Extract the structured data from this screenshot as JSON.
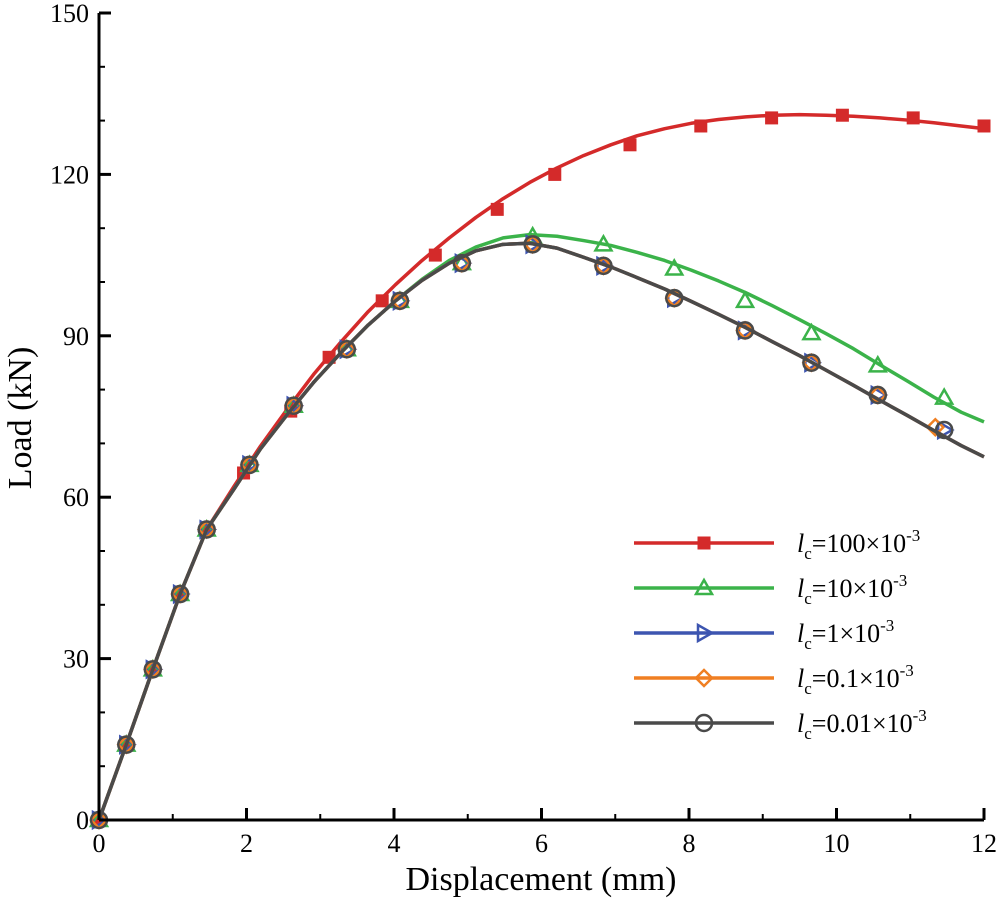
{
  "chart_data": {
    "type": "line",
    "xlabel": "Displacement (mm)",
    "ylabel": "Load (kN)",
    "xlim": [
      0,
      12
    ],
    "ylim": [
      0,
      150
    ],
    "xticks": [
      0,
      2,
      4,
      6,
      8,
      10,
      12
    ],
    "yticks": [
      0,
      30,
      60,
      90,
      120,
      150
    ],
    "x_tick_labels": [
      "0",
      "2",
      "4",
      "6",
      "8",
      "10",
      "12"
    ],
    "y_tick_labels": [
      "0",
      "30",
      "60",
      "90",
      "120",
      "150"
    ],
    "grid": false,
    "legend_position": "bottom-right",
    "series": [
      {
        "name": "lc=100×10-3",
        "label_prefix": "l",
        "label_sub": "c",
        "label_main": "=100×10",
        "label_sup": "-3",
        "color": "#d42a2a",
        "marker": "filled-square",
        "x": [
          0,
          0.37,
          0.73,
          1.1,
          1.46,
          1.83,
          2.19,
          2.56,
          2.92,
          3.29,
          3.65,
          4.02,
          4.38,
          4.75,
          5.11,
          5.48,
          5.84,
          6.21,
          6.57,
          6.94,
          7.3,
          7.67,
          8.03,
          8.4,
          8.77,
          9.13,
          9.5,
          9.86,
          10.23,
          10.59,
          10.96,
          11.32,
          11.69,
          12.0
        ],
        "y": [
          0,
          14,
          28,
          42,
          54,
          62,
          69.5,
          76.5,
          83,
          89,
          94.5,
          99.5,
          104,
          108.2,
          112,
          115.5,
          118.5,
          121.2,
          123.5,
          125.5,
          127.2,
          128.5,
          129.5,
          130.2,
          130.7,
          131.0,
          131.1,
          131.0,
          130.8,
          130.5,
          130.1,
          129.6,
          129.0,
          128.5
        ],
        "markers_x": [
          0,
          0.37,
          0.73,
          1.1,
          1.46,
          1.96,
          2.6,
          3.12,
          3.84,
          4.56,
          5.4,
          6.18,
          7.2,
          8.16,
          9.12,
          10.08,
          11.04,
          12.0
        ],
        "markers_y": [
          0,
          14,
          28,
          42,
          54,
          64.5,
          76,
          86,
          96.5,
          105,
          113.5,
          120,
          125.5,
          129,
          130.5,
          131,
          130.5,
          129
        ]
      },
      {
        "name": "lc=10×10-3",
        "label_prefix": "l",
        "label_sub": "c",
        "label_main": "=10×10",
        "label_sup": "-3",
        "color": "#3bb34a",
        "marker": "open-triangle",
        "x": [
          0,
          0.37,
          0.73,
          1.1,
          1.46,
          1.83,
          2.19,
          2.56,
          2.92,
          3.29,
          3.65,
          4.02,
          4.38,
          4.75,
          5.11,
          5.48,
          5.84,
          6.21,
          6.57,
          6.94,
          7.3,
          7.67,
          8.03,
          8.4,
          8.77,
          9.13,
          9.5,
          9.86,
          10.23,
          10.59,
          10.96,
          11.32,
          11.69,
          12.0
        ],
        "y": [
          0,
          14,
          28,
          42,
          54,
          61.5,
          69,
          75.5,
          81.5,
          87,
          92,
          96.5,
          100.5,
          104,
          106.5,
          108.2,
          108.8,
          108.5,
          107.7,
          106.8,
          105.5,
          104,
          102.2,
          100.2,
          98,
          95.6,
          93,
          90.4,
          87.6,
          84.6,
          81.6,
          78.6,
          75.8,
          74
        ],
        "markers_x": [
          0,
          0.37,
          0.73,
          1.1,
          1.46,
          2.04,
          2.64,
          3.36,
          4.08,
          4.92,
          5.88,
          6.84,
          7.8,
          8.76,
          9.66,
          10.56,
          11.46
        ],
        "markers_y": [
          0,
          14,
          28,
          42,
          54,
          66,
          77,
          87.5,
          96.5,
          103.5,
          108.5,
          107,
          102.5,
          96.5,
          90.5,
          84.5,
          78.5
        ]
      },
      {
        "name": "lc=1×10-3",
        "label_prefix": "l",
        "label_sub": "c",
        "label_main": "=1×10",
        "label_sup": "-3",
        "color": "#3d55b0",
        "marker": "open-triangle-right",
        "x": [
          0,
          0.37,
          0.73,
          1.1,
          1.46,
          1.83,
          2.19,
          2.56,
          2.92,
          3.29,
          3.65,
          4.02,
          4.38,
          4.75,
          5.11,
          5.48,
          5.84,
          6.21,
          6.57,
          6.94,
          7.3,
          7.67,
          8.03,
          8.4,
          8.77,
          9.13,
          9.5,
          9.86,
          10.23,
          10.59,
          10.96,
          11.32,
          11.69,
          12.0
        ],
        "y": [
          0,
          14,
          28,
          42,
          54,
          61.5,
          69,
          75.5,
          81.5,
          87,
          92,
          96.5,
          100.3,
          103.5,
          105.8,
          107,
          107.2,
          106.3,
          104.6,
          102.8,
          100.8,
          98.7,
          96.4,
          94,
          91.5,
          88.9,
          86.3,
          83.6,
          80.8,
          78,
          75.2,
          72.4,
          69.6,
          67.5
        ],
        "markers_x": [
          0,
          0.37,
          0.73,
          1.1,
          1.46,
          2.04,
          2.64,
          3.36,
          4.08,
          4.92,
          5.88,
          6.84,
          7.8,
          8.76,
          9.66,
          10.56,
          11.46
        ],
        "markers_y": [
          0,
          14,
          28,
          42,
          54,
          66,
          77,
          87.5,
          96.5,
          103.5,
          107,
          103,
          97,
          91,
          85,
          79,
          72.5
        ]
      },
      {
        "name": "lc=0.1×10-3",
        "label_prefix": "l",
        "label_sub": "c",
        "label_main": "=0.1×10",
        "label_sup": "-3",
        "color": "#f07f22",
        "marker": "open-diamond",
        "x": [
          0,
          0.37,
          0.73,
          1.1,
          1.46,
          1.83,
          2.19,
          2.56,
          2.92,
          3.29,
          3.65,
          4.02,
          4.38,
          4.75,
          5.11,
          5.48,
          5.84,
          6.21,
          6.57,
          6.94,
          7.3,
          7.67,
          8.03,
          8.4,
          8.77,
          9.13,
          9.5,
          9.86,
          10.23,
          10.59,
          10.96,
          11.32,
          11.69,
          12.0
        ],
        "y": [
          0,
          14,
          28,
          42,
          54,
          61.5,
          69,
          75.5,
          81.5,
          87,
          92,
          96.5,
          100.3,
          103.5,
          105.8,
          107,
          107.2,
          106.3,
          104.6,
          102.8,
          100.8,
          98.7,
          96.4,
          94,
          91.5,
          88.9,
          86.3,
          83.6,
          80.8,
          78,
          75.2,
          72.4,
          69.6,
          67.5
        ],
        "markers_x": [
          0,
          0.37,
          0.73,
          1.1,
          1.46,
          2.04,
          2.64,
          3.36,
          4.08,
          4.92,
          5.88,
          6.84,
          7.8,
          8.76,
          9.66,
          10.56,
          11.34
        ],
        "markers_y": [
          0,
          14,
          28,
          42,
          54,
          66,
          77,
          87.5,
          96.5,
          103.5,
          107,
          103,
          97,
          91,
          85,
          79,
          73
        ]
      },
      {
        "name": "lc=0.01×10-3",
        "label_prefix": "l",
        "label_sub": "c",
        "label_main": "=0.01×10",
        "label_sup": "-3",
        "color": "#4a4a4a",
        "marker": "open-circle",
        "x": [
          0,
          0.37,
          0.73,
          1.1,
          1.46,
          1.83,
          2.19,
          2.56,
          2.92,
          3.29,
          3.65,
          4.02,
          4.38,
          4.75,
          5.11,
          5.48,
          5.84,
          6.21,
          6.57,
          6.94,
          7.3,
          7.67,
          8.03,
          8.4,
          8.77,
          9.13,
          9.5,
          9.86,
          10.23,
          10.59,
          10.96,
          11.32,
          11.69,
          12.0
        ],
        "y": [
          0,
          14,
          28,
          42,
          54,
          61.5,
          69,
          75.5,
          81.5,
          87,
          92,
          96.5,
          100.3,
          103.5,
          105.8,
          107,
          107.2,
          106.3,
          104.6,
          102.8,
          100.8,
          98.7,
          96.4,
          94,
          91.5,
          88.9,
          86.3,
          83.6,
          80.8,
          78,
          75.2,
          72.4,
          69.6,
          67.5
        ],
        "markers_x": [
          0,
          0.37,
          0.73,
          1.1,
          1.46,
          2.04,
          2.64,
          3.36,
          4.08,
          4.92,
          5.88,
          6.84,
          7.8,
          8.76,
          9.66,
          10.56,
          11.46
        ],
        "markers_y": [
          0,
          14,
          28,
          42,
          54,
          66,
          77,
          87.5,
          96.5,
          103.5,
          107,
          103,
          97,
          91,
          85,
          79,
          72.5
        ]
      }
    ]
  }
}
